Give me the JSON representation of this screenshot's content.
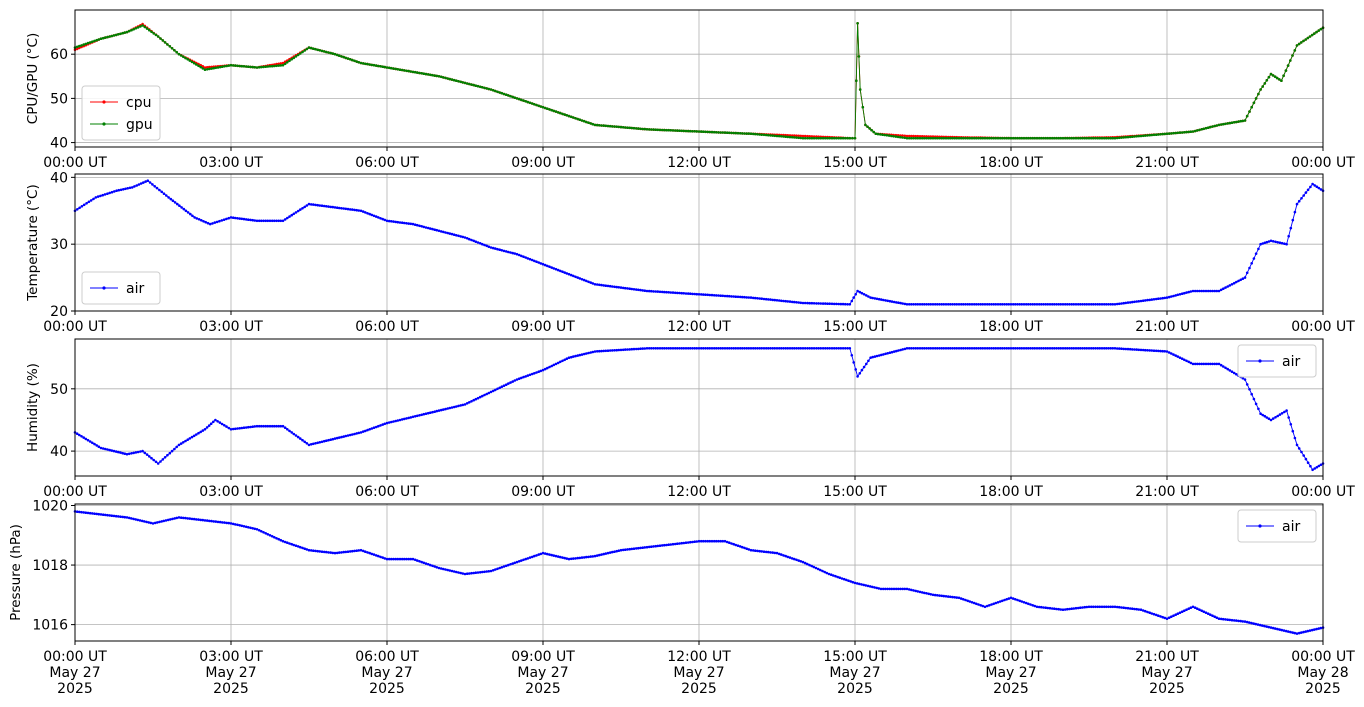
{
  "chart_data": [
    {
      "type": "line",
      "ylabel": "CPU/GPU (°C)",
      "ylim": [
        39,
        70
      ],
      "yticks": [
        40,
        50,
        60
      ],
      "xlim": [
        0,
        24
      ],
      "xtick_labels": [
        "00:00 UT",
        "03:00 UT",
        "06:00 UT",
        "09:00 UT",
        "12:00 UT",
        "15:00 UT",
        "18:00 UT",
        "21:00 UT",
        "00:00 UT"
      ],
      "grid": true,
      "legend": "lower-left",
      "series": [
        {
          "name": "cpu",
          "color": "#ff0000",
          "x": [
            0,
            0.5,
            1,
            1.3,
            1.6,
            2,
            2.5,
            3,
            3.5,
            4,
            4.5,
            5,
            5.5,
            6,
            7,
            8,
            9,
            10,
            11,
            12,
            13,
            14,
            14.9,
            15.0,
            15.05,
            15.1,
            15.2,
            15.4,
            16,
            17,
            18,
            19,
            20,
            21,
            21.5,
            22,
            22.5,
            22.8,
            23,
            23.2,
            23.5,
            24
          ],
          "y": [
            61,
            63.5,
            65,
            66.8,
            64,
            60,
            57,
            57.5,
            57,
            58,
            61.5,
            60,
            58,
            57,
            55,
            52,
            48,
            44,
            43,
            42.5,
            42,
            41.5,
            41,
            41,
            67,
            52,
            44,
            42,
            41.5,
            41.2,
            41,
            41,
            41.2,
            42,
            42.5,
            44,
            45,
            52,
            55.5,
            54,
            62,
            66
          ]
        },
        {
          "name": "gpu",
          "color": "#008000",
          "x": [
            0,
            0.5,
            1,
            1.3,
            1.6,
            2,
            2.5,
            3,
            3.5,
            4,
            4.5,
            5,
            5.5,
            6,
            7,
            8,
            9,
            10,
            11,
            12,
            13,
            14,
            14.9,
            15.0,
            15.05,
            15.1,
            15.2,
            15.4,
            16,
            17,
            18,
            19,
            20,
            21,
            21.5,
            22,
            22.5,
            22.8,
            23,
            23.2,
            23.5,
            24
          ],
          "y": [
            61.5,
            63.5,
            65,
            66.5,
            64,
            60,
            56.5,
            57.5,
            57,
            57.5,
            61.5,
            60,
            58,
            57,
            55,
            52,
            48,
            44,
            43,
            42.5,
            42,
            41,
            41,
            41,
            67,
            52,
            44,
            42,
            41,
            41,
            41,
            41,
            41,
            42,
            42.5,
            44,
            45,
            52,
            55.5,
            54,
            62,
            66
          ]
        }
      ]
    },
    {
      "type": "line",
      "ylabel": "Temperature (°C)",
      "ylim": [
        20,
        40.5
      ],
      "yticks": [
        20,
        30,
        40
      ],
      "xlim": [
        0,
        24
      ],
      "xtick_labels": [
        "00:00 UT",
        "03:00 UT",
        "06:00 UT",
        "09:00 UT",
        "12:00 UT",
        "15:00 UT",
        "18:00 UT",
        "21:00 UT",
        "00:00 UT"
      ],
      "grid": true,
      "legend": "lower-left",
      "series": [
        {
          "name": "air",
          "color": "#0000ff",
          "x": [
            0,
            0.4,
            0.8,
            1.1,
            1.4,
            1.8,
            2.3,
            2.6,
            3.0,
            3.5,
            4.0,
            4.5,
            5.0,
            5.5,
            6.0,
            6.5,
            7.0,
            7.5,
            8.0,
            8.5,
            9.0,
            10.0,
            11.0,
            12.0,
            13.0,
            14.0,
            14.9,
            15.05,
            15.3,
            16.0,
            17.0,
            18.0,
            19.0,
            20.0,
            21.0,
            21.5,
            22.0,
            22.5,
            22.8,
            23.0,
            23.3,
            23.5,
            23.8,
            24.0
          ],
          "y": [
            35,
            37,
            38,
            38.5,
            39.5,
            37,
            34,
            33,
            34,
            33.5,
            33.5,
            36,
            35.5,
            35,
            33.5,
            33,
            32,
            31,
            29.5,
            28.5,
            27,
            24,
            23,
            22.5,
            22,
            21.2,
            21,
            23,
            22,
            21,
            21,
            21,
            21,
            21,
            22,
            23,
            23,
            25,
            30,
            30.5,
            30,
            36,
            39,
            38
          ]
        }
      ]
    },
    {
      "type": "line",
      "ylabel": "Humidity (%)",
      "ylim": [
        36,
        58
      ],
      "yticks": [
        40,
        50
      ],
      "xlim": [
        0,
        24
      ],
      "xtick_labels": [
        "00:00 UT",
        "03:00 UT",
        "06:00 UT",
        "09:00 UT",
        "12:00 UT",
        "15:00 UT",
        "18:00 UT",
        "21:00 UT",
        "00:00 UT"
      ],
      "grid": true,
      "legend": "upper-right",
      "series": [
        {
          "name": "air",
          "color": "#0000ff",
          "x": [
            0,
            0.5,
            1,
            1.3,
            1.6,
            2,
            2.5,
            2.7,
            3.0,
            3.5,
            4.0,
            4.5,
            5.0,
            5.5,
            6.0,
            6.5,
            7.0,
            7.5,
            8.0,
            8.5,
            9.0,
            9.5,
            10,
            11,
            12,
            13,
            14,
            14.9,
            15.05,
            15.3,
            16,
            17,
            18,
            19,
            20,
            21,
            21.5,
            22,
            22.5,
            22.8,
            23.0,
            23.3,
            23.5,
            23.8,
            24.0
          ],
          "y": [
            43,
            40.5,
            39.5,
            40,
            38,
            41,
            43.5,
            45,
            43.5,
            44,
            44,
            41,
            42,
            43,
            44.5,
            45.5,
            46.5,
            47.5,
            49.5,
            51.5,
            53,
            55,
            56,
            56.5,
            56.5,
            56.5,
            56.5,
            56.5,
            52,
            55,
            56.5,
            56.5,
            56.5,
            56.5,
            56.5,
            56,
            54,
            54,
            51.5,
            46,
            45,
            46.5,
            41,
            37,
            38
          ]
        }
      ]
    },
    {
      "type": "line",
      "ylabel": "Pressure (hPa)",
      "ylim": [
        1015.45,
        1020.05
      ],
      "yticks": [
        1016,
        1018,
        1020
      ],
      "xlim": [
        0,
        24
      ],
      "xtick_labels": [
        "00:00 UT\nMay 27\n2025",
        "03:00 UT\nMay 27\n2025",
        "06:00 UT\nMay 27\n2025",
        "09:00 UT\nMay 27\n2025",
        "12:00 UT\nMay 27\n2025",
        "15:00 UT\nMay 27\n2025",
        "18:00 UT\nMay 27\n2025",
        "21:00 UT\nMay 27\n2025",
        "00:00 UT\nMay 28\n2025"
      ],
      "grid": true,
      "legend": "upper-right",
      "series": [
        {
          "name": "air",
          "color": "#0000ff",
          "x": [
            0,
            0.5,
            1,
            1.5,
            2,
            2.5,
            3,
            3.5,
            4,
            4.5,
            5,
            5.5,
            6,
            6.5,
            7,
            7.5,
            8,
            8.5,
            9,
            9.5,
            10,
            10.5,
            11,
            11.5,
            12,
            12.5,
            13,
            13.5,
            14,
            14.5,
            15,
            15.5,
            16,
            16.5,
            17,
            17.5,
            18,
            18.5,
            19,
            19.5,
            20,
            20.5,
            21,
            21.5,
            22,
            22.5,
            23,
            23.5,
            24
          ],
          "y": [
            1019.8,
            1019.7,
            1019.6,
            1019.4,
            1019.6,
            1019.5,
            1019.4,
            1019.2,
            1018.8,
            1018.5,
            1018.4,
            1018.5,
            1018.2,
            1018.2,
            1017.9,
            1017.7,
            1017.8,
            1018.1,
            1018.4,
            1018.2,
            1018.3,
            1018.5,
            1018.6,
            1018.7,
            1018.8,
            1018.8,
            1018.5,
            1018.4,
            1018.1,
            1017.7,
            1017.4,
            1017.2,
            1017.2,
            1017.0,
            1016.9,
            1016.6,
            1016.9,
            1016.6,
            1016.5,
            1016.6,
            1016.6,
            1016.5,
            1016.2,
            1016.6,
            1016.2,
            1016.1,
            1015.9,
            1015.7,
            1015.9
          ]
        }
      ]
    }
  ]
}
